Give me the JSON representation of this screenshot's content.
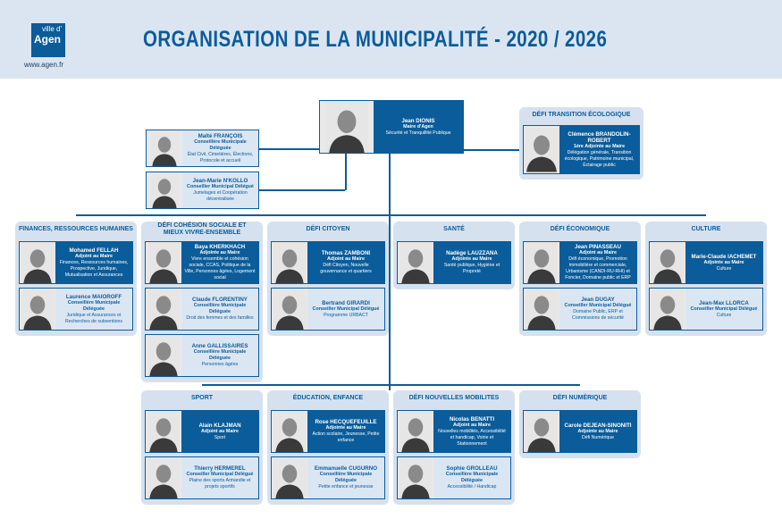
{
  "header": {
    "logo_top": "ville d'",
    "logo_main": "Agen",
    "url": "www.agen.fr",
    "title": "ORGANISATION DE LA MUNICIPALITÉ - 2020 / 2026"
  },
  "colors": {
    "primary": "#0b5c9a",
    "panel": "#d6e1ef",
    "header": "#dbe5f1"
  },
  "mayor": {
    "name": "Jean DIONIS",
    "role": "Maire d'Agen",
    "desc": "Sécurité et Tranquillité Publique",
    "type": "blue"
  },
  "delegates": [
    {
      "name": "Maïté FRANÇOIS",
      "role": "Conseillère Municipale Déléguée",
      "desc": "État Civil, Cimetières, Élections, Protocole et accueil",
      "type": "light"
    },
    {
      "name": "Jean-Marie N'KOLLO",
      "role": "Conseiller Municipal Délégué",
      "desc": "Jumelages et Coopération décentralisée",
      "type": "light"
    }
  ],
  "panels": [
    {
      "title": "DÉFI TRANSITION ÉCOLOGIQUE",
      "cards": [
        {
          "name": "Clémence BRANDOLIN-ROBERT",
          "role": "1ère Adjointe au Maire",
          "desc": "Délégation générale, Transition écologique, Patrimoine municipal, Éclairage public",
          "type": "blue"
        }
      ]
    },
    {
      "title": "FINANCES, RESSOURCES HUMAINES",
      "cards": [
        {
          "name": "Mohamed FELLAH",
          "role": "Adjoint au Maire",
          "desc": "Finances, Ressources humaines, Prospective, Juridique, Mutualisation et Assurances",
          "type": "blue"
        },
        {
          "name": "Laurence MAIOROFF",
          "role": "Conseillère Municipale Déléguée",
          "desc": "Juridique et Assurances et Recherches de subventions",
          "type": "light"
        }
      ]
    },
    {
      "title": "DÉFI COHÉSION SOCIALE ET MIEUX VIVRE-ENSEMBLE",
      "cards": [
        {
          "name": "Baya KHERKHACH",
          "role": "Adjointe au Maire",
          "desc": "Vivre ensemble et cohésion sociale, CCAS, Politique de la Ville, Personnes âgées, Logement social",
          "type": "blue"
        },
        {
          "name": "Claude FLORENTINY",
          "role": "Conseillère Municipale Déléguée",
          "desc": "Droit des femmes et des familles",
          "type": "light"
        },
        {
          "name": "Anne GALLISSAIRES",
          "role": "Conseillère Municipale Déléguée",
          "desc": "Personnes âgées",
          "type": "light"
        }
      ]
    },
    {
      "title": "DÉFI CITOYEN",
      "cards": [
        {
          "name": "Thomas ZAMBONI",
          "role": "Adjoint au Maire",
          "desc": "Défi Citoyen, Nouvelle gouvernance et quartiers",
          "type": "blue"
        },
        {
          "name": "Bertrand GIRARDI",
          "role": "Conseiller Municipal Délégué",
          "desc": "Programme URBACT",
          "type": "light"
        }
      ]
    },
    {
      "title": "SANTÉ",
      "cards": [
        {
          "name": "Nadège LAUZZANA",
          "role": "Adjointe au Maire",
          "desc": "Santé publique, Hygiène et Propreté",
          "type": "blue"
        }
      ]
    },
    {
      "title": "DÉFI ÉCONOMIQUE",
      "cards": [
        {
          "name": "Jean PINASSEAU",
          "role": "Adjoint au Maire",
          "desc": "Défi économique, Promotion immobilière et commerciale, Urbanisme (CANDI-RU-RHI) et Foncier, Domaine public et ERP",
          "type": "blue"
        },
        {
          "name": "Jean DUGAY",
          "role": "Conseiller Municipal Délégué",
          "desc": "Domaine Public, ERP et Commissions de sécurité",
          "type": "light"
        }
      ]
    },
    {
      "title": "CULTURE",
      "cards": [
        {
          "name": "Marie-Claude IACHEMET",
          "role": "Adjointe au Maire",
          "desc": "Culture",
          "type": "blue"
        },
        {
          "name": "Jean-Max LLORCA",
          "role": "Conseiller Municipal Délégué",
          "desc": "Culture",
          "type": "light"
        }
      ]
    },
    {
      "title": "SPORT",
      "cards": [
        {
          "name": "Alain KLAJMAN",
          "role": "Adjoint au Maire",
          "desc": "Sport",
          "type": "blue"
        },
        {
          "name": "Thierry HERMEREL",
          "role": "Conseiller Municipal Délégué",
          "desc": "Plaine des sports Armandie et projets sportifs",
          "type": "light"
        }
      ]
    },
    {
      "title": "ÉDUCATION, ENFANCE",
      "cards": [
        {
          "name": "Rose HECQUEFEUILLE",
          "role": "Adjointe au Maire",
          "desc": "Action scolaire, Jeunesse, Petite enfance",
          "type": "blue"
        },
        {
          "name": "Emmanuelle CUGURNO",
          "role": "Conseillère Municipale Déléguée",
          "desc": "Petite enfance et jeunesse",
          "type": "light"
        }
      ]
    },
    {
      "title": "DÉFI NOUVELLES MOBILITES",
      "cards": [
        {
          "name": "Nicolas BENATTI",
          "role": "Adjoint au Maire",
          "desc": "Nouvelles mobilités, Accessibilité et handicap, Voirie et Stationnement",
          "type": "blue"
        },
        {
          "name": "Sophie GROLLEAU",
          "role": "Conseillère Municipale Déléguée",
          "desc": "Accessibilité / Handicap",
          "type": "light"
        }
      ]
    },
    {
      "title": "DÉFI NUMÉRIQUE",
      "cards": [
        {
          "name": "Carole DEJEAN-SINONITI",
          "role": "Adjointe au Maire",
          "desc": "Défi Numérique",
          "type": "blue"
        }
      ]
    }
  ]
}
